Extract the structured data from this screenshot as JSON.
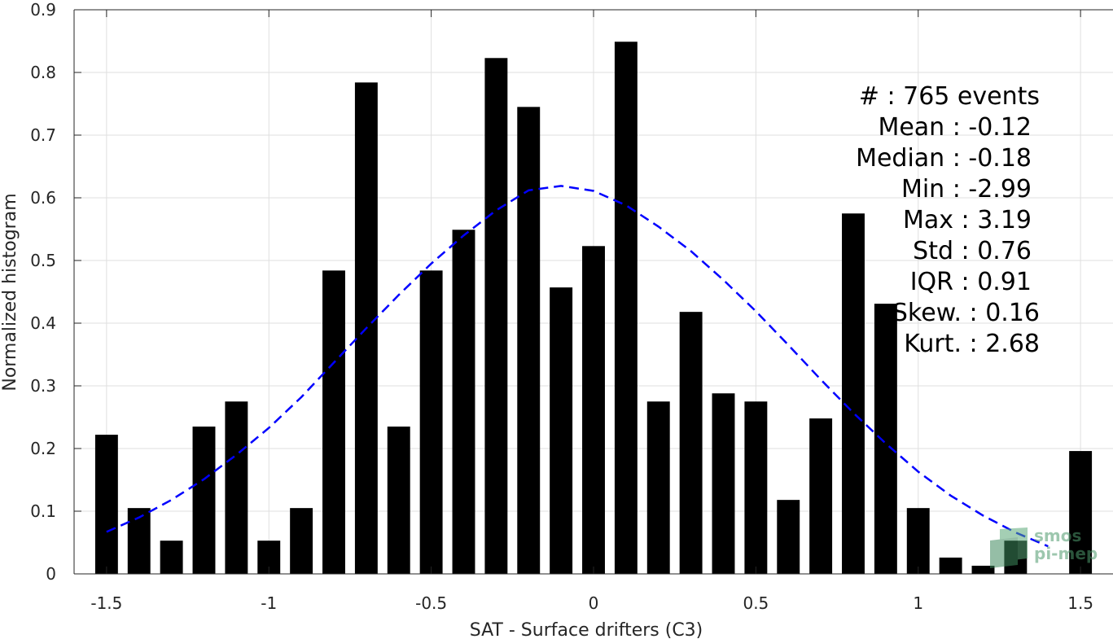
{
  "chart_data": {
    "type": "bar",
    "title": "",
    "xlabel": "SAT - Surface drifters (C3)",
    "ylabel": "Normalized histogram",
    "xlim": [
      -1.6,
      1.6
    ],
    "ylim": [
      0,
      0.9
    ],
    "grid": true,
    "x_ticks": [
      -1.5,
      -1,
      -0.5,
      0,
      0.5,
      1,
      1.5
    ],
    "x_tick_labels": [
      "-1.5",
      "-1",
      "-0.5",
      "0",
      "0.5",
      "1",
      "1.5"
    ],
    "y_ticks": [
      0,
      0.1,
      0.2,
      0.3,
      0.4,
      0.5,
      0.6,
      0.7,
      0.8,
      0.9
    ],
    "y_tick_labels": [
      "0",
      "0.1",
      "0.2",
      "0.3",
      "0.4",
      "0.5",
      "0.6",
      "0.7",
      "0.8",
      "0.9"
    ],
    "bar_width": 0.07,
    "bar_color": "#000000",
    "x": [
      -1.5,
      -1.4,
      -1.3,
      -1.2,
      -1.1,
      -1.0,
      -0.9,
      -0.8,
      -0.7,
      -0.6,
      -0.5,
      -0.4,
      -0.3,
      -0.2,
      -0.1,
      0.0,
      0.1,
      0.2,
      0.3,
      0.4,
      0.5,
      0.6,
      0.7,
      0.8,
      0.9,
      1.0,
      1.1,
      1.2,
      1.3,
      1.5
    ],
    "values": [
      0.222,
      0.105,
      0.053,
      0.235,
      0.275,
      0.053,
      0.105,
      0.484,
      0.784,
      0.235,
      0.484,
      0.549,
      0.823,
      0.745,
      0.457,
      0.523,
      0.849,
      0.275,
      0.418,
      0.288,
      0.275,
      0.118,
      0.248,
      0.575,
      0.431,
      0.105,
      0.026,
      0.013,
      0.053,
      0.196
    ],
    "fit_curve": {
      "style": "dashed",
      "color": "#0000ff",
      "x": [
        -1.5,
        -1.4,
        -1.3,
        -1.2,
        -1.1,
        -1.0,
        -0.9,
        -0.8,
        -0.7,
        -0.6,
        -0.5,
        -0.4,
        -0.3,
        -0.2,
        -0.1,
        0.0,
        0.1,
        0.2,
        0.3,
        0.4,
        0.5,
        0.6,
        0.7,
        0.8,
        0.9,
        1.0,
        1.1,
        1.2,
        1.3,
        1.4
      ],
      "y": [
        0.067,
        0.09,
        0.118,
        0.151,
        0.19,
        0.233,
        0.282,
        0.337,
        0.392,
        0.445,
        0.495,
        0.54,
        0.58,
        0.612,
        0.619,
        0.611,
        0.588,
        0.554,
        0.515,
        0.469,
        0.419,
        0.365,
        0.31,
        0.257,
        0.208,
        0.163,
        0.125,
        0.093,
        0.066,
        0.044
      ]
    }
  },
  "stats": [
    {
      "label": "#  : 765 events"
    },
    {
      "label": "Mean : -0.12"
    },
    {
      "label": "Median : -0.18"
    },
    {
      "label": "Min : -2.99"
    },
    {
      "label": "Max : 3.19"
    },
    {
      "label": "Std : 0.76"
    },
    {
      "label": "IQR : 0.91"
    },
    {
      "label": "Skew. : 0.16"
    },
    {
      "label": "Kurt. : 2.68"
    }
  ],
  "watermark": {
    "line1": "smos",
    "line2": "pi-mep"
  }
}
